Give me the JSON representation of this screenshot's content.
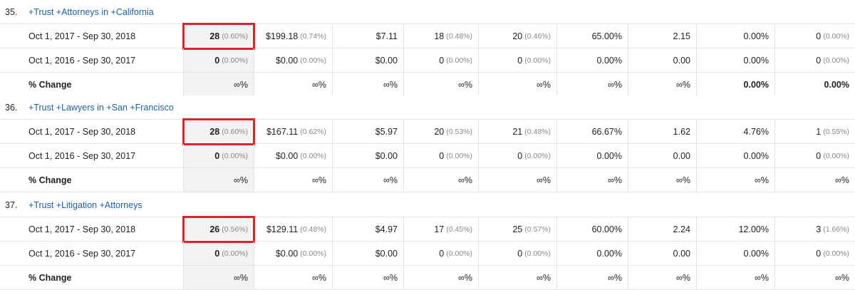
{
  "groups": [
    {
      "index": "35.",
      "keyword": "+Trust +Attorneys in +California",
      "rows": [
        {
          "date": "Oct 1, 2017 - Sep 30, 2018",
          "cells": [
            {
              "v": "28",
              "p": "(0.60%)",
              "b": true
            },
            {
              "v": "$199.18",
              "p": "(0.74%)"
            },
            {
              "v": "$7.11",
              "p": ""
            },
            {
              "v": "18",
              "p": "(0.48%)"
            },
            {
              "v": "20",
              "p": "(0.46%)"
            },
            {
              "v": "65.00%",
              "p": ""
            },
            {
              "v": "2.15",
              "p": ""
            },
            {
              "v": "0.00%",
              "p": ""
            },
            {
              "v": "0",
              "p": "(0.00%)"
            }
          ]
        },
        {
          "date": "Oct 1, 2016 - Sep 30, 2017",
          "cells": [
            {
              "v": "0",
              "p": "(0.00%)",
              "b": true
            },
            {
              "v": "$0.00",
              "p": "(0.00%)"
            },
            {
              "v": "$0.00",
              "p": ""
            },
            {
              "v": "0",
              "p": "(0.00%)"
            },
            {
              "v": "0",
              "p": "(0.00%)"
            },
            {
              "v": "0.00%",
              "p": ""
            },
            {
              "v": "0.00",
              "p": ""
            },
            {
              "v": "0.00%",
              "p": ""
            },
            {
              "v": "0",
              "p": "(0.00%)"
            }
          ]
        },
        {
          "date": "% Change",
          "bold": true,
          "cells": [
            {
              "v": "∞%",
              "p": ""
            },
            {
              "v": "∞%",
              "p": ""
            },
            {
              "v": "∞%",
              "p": ""
            },
            {
              "v": "∞%",
              "p": ""
            },
            {
              "v": "∞%",
              "p": ""
            },
            {
              "v": "∞%",
              "p": ""
            },
            {
              "v": "∞%",
              "p": ""
            },
            {
              "v": "0.00%",
              "p": "",
              "b": true
            },
            {
              "v": "0.00%",
              "p": "",
              "b": true
            }
          ]
        }
      ]
    },
    {
      "index": "36.",
      "keyword": "+Trust +Lawyers in +San +Francisco",
      "rows": [
        {
          "date": "Oct 1, 2017 - Sep 30, 2018",
          "cells": [
            {
              "v": "28",
              "p": "(0.60%)",
              "b": true
            },
            {
              "v": "$167.11",
              "p": "(0.62%)"
            },
            {
              "v": "$5.97",
              "p": ""
            },
            {
              "v": "20",
              "p": "(0.53%)"
            },
            {
              "v": "21",
              "p": "(0.48%)"
            },
            {
              "v": "66.67%",
              "p": ""
            },
            {
              "v": "1.62",
              "p": ""
            },
            {
              "v": "4.76%",
              "p": ""
            },
            {
              "v": "1",
              "p": "(0.55%)"
            }
          ]
        },
        {
          "date": "Oct 1, 2016 - Sep 30, 2017",
          "cells": [
            {
              "v": "0",
              "p": "(0.00%)",
              "b": true
            },
            {
              "v": "$0.00",
              "p": "(0.00%)"
            },
            {
              "v": "$0.00",
              "p": ""
            },
            {
              "v": "0",
              "p": "(0.00%)"
            },
            {
              "v": "0",
              "p": "(0.00%)"
            },
            {
              "v": "0.00%",
              "p": ""
            },
            {
              "v": "0.00",
              "p": ""
            },
            {
              "v": "0.00%",
              "p": ""
            },
            {
              "v": "0",
              "p": "(0.00%)"
            }
          ]
        },
        {
          "date": "% Change",
          "bold": true,
          "cells": [
            {
              "v": "∞%",
              "p": ""
            },
            {
              "v": "∞%",
              "p": ""
            },
            {
              "v": "∞%",
              "p": ""
            },
            {
              "v": "∞%",
              "p": ""
            },
            {
              "v": "∞%",
              "p": ""
            },
            {
              "v": "∞%",
              "p": ""
            },
            {
              "v": "∞%",
              "p": ""
            },
            {
              "v": "∞%",
              "p": ""
            },
            {
              "v": "∞%",
              "p": ""
            }
          ]
        }
      ]
    },
    {
      "index": "37.",
      "keyword": "+Trust +Litigation +Attorneys",
      "rows": [
        {
          "date": "Oct 1, 2017 - Sep 30, 2018",
          "cells": [
            {
              "v": "26",
              "p": "(0.56%)",
              "b": true
            },
            {
              "v": "$129.11",
              "p": "(0.48%)"
            },
            {
              "v": "$4.97",
              "p": ""
            },
            {
              "v": "17",
              "p": "(0.45%)"
            },
            {
              "v": "25",
              "p": "(0.57%)"
            },
            {
              "v": "60.00%",
              "p": ""
            },
            {
              "v": "2.24",
              "p": ""
            },
            {
              "v": "12.00%",
              "p": ""
            },
            {
              "v": "3",
              "p": "(1.66%)"
            }
          ]
        },
        {
          "date": "Oct 1, 2016 - Sep 30, 2017",
          "cells": [
            {
              "v": "0",
              "p": "(0.00%)",
              "b": true
            },
            {
              "v": "$0.00",
              "p": "(0.00%)"
            },
            {
              "v": "$0.00",
              "p": ""
            },
            {
              "v": "0",
              "p": "(0.00%)"
            },
            {
              "v": "0",
              "p": "(0.00%)"
            },
            {
              "v": "0.00%",
              "p": ""
            },
            {
              "v": "0.00",
              "p": ""
            },
            {
              "v": "0.00%",
              "p": ""
            },
            {
              "v": "0",
              "p": "(0.00%)"
            }
          ]
        },
        {
          "date": "% Change",
          "bold": true,
          "cells": [
            {
              "v": "∞%",
              "p": ""
            },
            {
              "v": "∞%",
              "p": ""
            },
            {
              "v": "∞%",
              "p": ""
            },
            {
              "v": "∞%",
              "p": ""
            },
            {
              "v": "∞%",
              "p": ""
            },
            {
              "v": "∞%",
              "p": ""
            },
            {
              "v": "∞%",
              "p": ""
            },
            {
              "v": "∞%",
              "p": ""
            },
            {
              "v": "∞%",
              "p": ""
            }
          ]
        }
      ]
    }
  ],
  "colors": {
    "link": "#1a5f9e",
    "highlight": "#d9262b",
    "highlight_column_bg": "#f3f3f3"
  }
}
